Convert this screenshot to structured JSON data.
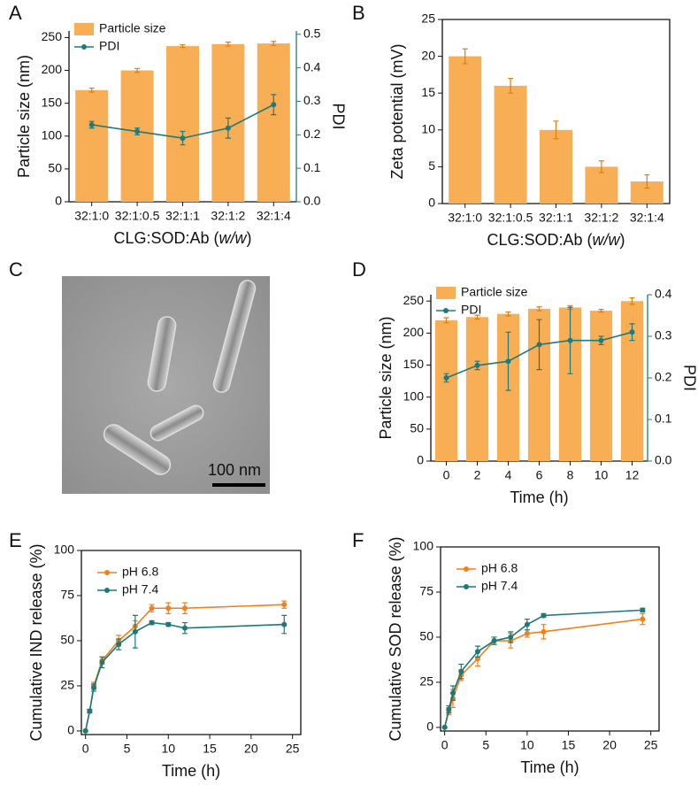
{
  "chart_data": [
    {
      "type": "bar_line",
      "panel": "A",
      "categories": [
        "32:1:0",
        "32:1:0.5",
        "32:1:1",
        "32:1:2",
        "32:1:4"
      ],
      "x_label_parts": [
        "CLG:SOD:Ab (",
        "w/w",
        ")"
      ],
      "y_label": "Particle size (nm)",
      "y2_label": "PDI",
      "y2_color": "#1f7b7b",
      "ylim": [
        0,
        260
      ],
      "yticks": [
        0,
        50,
        100,
        150,
        200,
        250
      ],
      "y2lim": [
        0,
        0.51
      ],
      "y2ticks": [
        {
          "value": 0,
          "label": "0.0"
        },
        0.1,
        0.2,
        0.3,
        0.4,
        0.5
      ],
      "legend": "upper left",
      "series": [
        {
          "name": "Particle size",
          "kind": "bar",
          "color": "#f8ae55",
          "values": [
            170,
            200,
            237,
            240,
            241
          ],
          "errors": [
            3,
            3,
            2,
            3,
            3
          ]
        },
        {
          "name": "PDI",
          "kind": "line",
          "axis": "y2",
          "color": "#1f7b7b",
          "values": [
            0.23,
            0.21,
            0.19,
            0.22,
            0.29
          ],
          "errors": [
            0.01,
            0.01,
            0.02,
            0.03,
            0.03
          ]
        }
      ]
    },
    {
      "type": "bar",
      "panel": "B",
      "categories": [
        "32:1:0",
        "32:1:0.5",
        "32:1:1",
        "32:1:2",
        "32:1:4"
      ],
      "x_label_parts": [
        "CLG:SOD:Ab (",
        "w/w",
        ")"
      ],
      "y_label": "Zeta potential (mV)",
      "ylim": [
        0,
        25
      ],
      "yticks": [
        0,
        5,
        10,
        15,
        20,
        25
      ],
      "series": [
        {
          "kind": "bar",
          "color": "#f8ae55",
          "values": [
            20,
            16,
            10,
            5,
            3
          ],
          "errors": [
            1,
            1,
            1.2,
            0.8,
            0.9
          ]
        }
      ]
    },
    {
      "type": "image",
      "panel": "C",
      "scale_label": "100 nm"
    },
    {
      "type": "bar_line",
      "panel": "D",
      "x": [
        0,
        2,
        4,
        6,
        8,
        10,
        12
      ],
      "xlim": [
        -1,
        13
      ],
      "xticks": [
        0,
        2,
        4,
        6,
        8,
        10,
        12
      ],
      "x_label": "Time (h)",
      "y_label": "Particle size (nm)",
      "y2_label": "PDI",
      "y2_color": "#1f7b7b",
      "ylim": [
        0,
        260
      ],
      "yticks": [
        0,
        50,
        100,
        150,
        200,
        250
      ],
      "y2lim": [
        0,
        0.4
      ],
      "y2ticks": [
        {
          "value": 0,
          "label": "0.0"
        },
        0.1,
        0.2,
        0.3,
        0.4
      ],
      "legend": "upper left",
      "series": [
        {
          "name": "Particle size",
          "kind": "bar",
          "color": "#f8ae55",
          "values": [
            220,
            225,
            230,
            238,
            240,
            235,
            250
          ],
          "errors": [
            4,
            3,
            3,
            3,
            3,
            2,
            5
          ]
        },
        {
          "name": "PDI",
          "kind": "line",
          "axis": "y2",
          "color": "#1f7b7b",
          "values": [
            0.2,
            0.23,
            0.24,
            0.28,
            0.29,
            0.29,
            0.31
          ],
          "errors": [
            0.01,
            0.01,
            0.07,
            0.06,
            0.08,
            0.01,
            0.02
          ]
        }
      ]
    },
    {
      "type": "line",
      "panel": "E",
      "x": [
        0,
        0.5,
        1,
        2,
        4,
        6,
        8,
        10,
        12,
        24
      ],
      "xlim": [
        -0.5,
        26
      ],
      "xticks": [
        0,
        5,
        10,
        15,
        20,
        25
      ],
      "x_label": "Time (h)",
      "y_label": "Cumulative IND release (%)",
      "ylim": [
        -2,
        100
      ],
      "yticks": [
        0,
        25,
        50,
        75,
        100
      ],
      "legend": "upper left",
      "series": [
        {
          "name": "pH 6.8",
          "kind": "line",
          "color": "#f57f17",
          "values": [
            0,
            11,
            25,
            39,
            50,
            58,
            68,
            68,
            68,
            70
          ],
          "errors": [
            0,
            1,
            2,
            2,
            3,
            3,
            2,
            3,
            3,
            2
          ]
        },
        {
          "name": "pH 7.4",
          "kind": "line",
          "color": "#1a7a78",
          "values": [
            0,
            11,
            24,
            38,
            48,
            55,
            60,
            59,
            57,
            59
          ],
          "errors": [
            0,
            1,
            2,
            3,
            3,
            9,
            1,
            1,
            3,
            5
          ]
        }
      ]
    },
    {
      "type": "line",
      "panel": "F",
      "x": [
        0,
        0.5,
        1,
        2,
        4,
        6,
        8,
        10,
        12,
        24
      ],
      "xlim": [
        -0.5,
        26
      ],
      "xticks": [
        0,
        5,
        10,
        15,
        20,
        25
      ],
      "x_label": "Time (h)",
      "y_label": "Cumulative SOD release (%)",
      "ylim": [
        -2,
        100
      ],
      "yticks": [
        0,
        25,
        50,
        75,
        100
      ],
      "legend": "upper left",
      "series": [
        {
          "name": "pH 6.8",
          "kind": "line",
          "color": "#f57f17",
          "values": [
            0,
            9,
            16,
            29,
            38,
            48,
            48,
            52,
            53,
            60
          ],
          "errors": [
            0,
            2,
            5,
            3,
            4,
            2,
            4,
            2,
            4,
            3
          ]
        },
        {
          "name": "pH 7.4",
          "kind": "line",
          "color": "#1a7a78",
          "values": [
            0,
            10,
            19,
            31,
            42,
            48,
            50,
            57,
            62,
            65
          ],
          "errors": [
            0,
            2,
            4,
            4,
            3,
            2,
            3,
            3,
            1,
            1
          ]
        }
      ]
    }
  ]
}
